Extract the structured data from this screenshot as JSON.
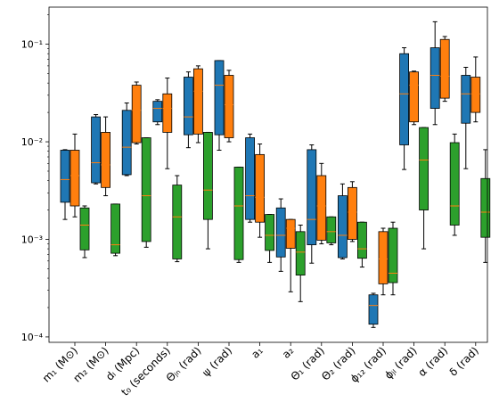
{
  "chart_data": {
    "type": "box",
    "yscale": "log",
    "ylim": [
      8.8e-05,
      0.24
    ],
    "ytick_labels": [
      "10⁻⁴",
      "10⁻³",
      "10⁻²",
      "10⁻¹"
    ],
    "ytick_values": [
      0.0001,
      0.001,
      0.01,
      0.1
    ],
    "grid": false,
    "categories": [
      "m₁ (M⊙)",
      "m₂ (M⊙)",
      "dₗ (Mpc)",
      "t₀ (seconds)",
      "Θⱼₙ (rad)",
      "ψ (rad)",
      "a₁",
      "a₂",
      "Θ₁ (rad)",
      "Θ₂ (rad)",
      "ϕ₁₂ (rad)",
      "ϕⱼₗ (rad)",
      "α (rad)",
      "δ (rad)"
    ],
    "series_colors": [
      "#1f77b4",
      "#ff7f0e",
      "#2ca02c"
    ],
    "median_color": "#ff7f0e",
    "boxes": [
      [
        {
          "whislo": 0.0016,
          "q1": 0.0024,
          "med": 0.0041,
          "q3": 0.0082,
          "whishi": 0.0083
        },
        {
          "whislo": 0.0017,
          "q1": 0.0022,
          "med": 0.0045,
          "q3": 0.0082,
          "whishi": 0.012
        },
        {
          "whislo": 0.00065,
          "q1": 0.00078,
          "med": 0.0014,
          "q3": 0.0021,
          "whishi": 0.0022
        }
      ],
      [
        {
          "whislo": 0.0037,
          "q1": 0.0038,
          "med": 0.0061,
          "q3": 0.018,
          "whishi": 0.019
        },
        {
          "whislo": 0.0028,
          "q1": 0.0034,
          "med": 0.0058,
          "q3": 0.0125,
          "whishi": 0.018
        },
        {
          "whislo": 0.00068,
          "q1": 0.00072,
          "med": 0.00088,
          "q3": 0.0023,
          "whishi": 0.0023
        }
      ],
      [
        {
          "whislo": 0.0045,
          "q1": 0.0046,
          "med": 0.0088,
          "q3": 0.021,
          "whishi": 0.025
        },
        {
          "whislo": 0.0095,
          "q1": 0.0098,
          "med": 0.021,
          "q3": 0.038,
          "whishi": 0.041
        },
        {
          "whislo": 0.00083,
          "q1": 0.00095,
          "med": 0.0028,
          "q3": 0.011,
          "whishi": 0.011
        }
      ],
      [
        {
          "whislo": 0.015,
          "q1": 0.016,
          "med": 0.022,
          "q3": 0.026,
          "whishi": 0.027
        },
        {
          "whislo": 0.0053,
          "q1": 0.0125,
          "med": 0.022,
          "q3": 0.031,
          "whishi": 0.045
        },
        {
          "whislo": 0.00059,
          "q1": 0.00063,
          "med": 0.0017,
          "q3": 0.0036,
          "whishi": 0.0045
        }
      ],
      [
        {
          "whislo": 0.0087,
          "q1": 0.0118,
          "med": 0.018,
          "q3": 0.046,
          "whishi": 0.052
        },
        {
          "whislo": 0.0098,
          "q1": 0.012,
          "med": 0.033,
          "q3": 0.056,
          "whishi": 0.06
        },
        {
          "whislo": 0.0008,
          "q1": 0.0016,
          "med": 0.0032,
          "q3": 0.0125,
          "whishi": 0.0125
        }
      ],
      [
        {
          "whislo": 0.0082,
          "q1": 0.0118,
          "med": 0.038,
          "q3": 0.068,
          "whishi": 0.068
        },
        {
          "whislo": 0.01,
          "q1": 0.011,
          "med": 0.024,
          "q3": 0.048,
          "whishi": 0.054
        },
        {
          "whislo": 0.00058,
          "q1": 0.00062,
          "med": 0.0022,
          "q3": 0.0055,
          "whishi": 0.0055
        }
      ],
      [
        {
          "whislo": 0.0015,
          "q1": 0.0016,
          "med": 0.0028,
          "q3": 0.011,
          "whishi": 0.012
        },
        {
          "whislo": 0.00105,
          "q1": 0.0015,
          "med": 0.0027,
          "q3": 0.0074,
          "whishi": 0.0095
        },
        {
          "whislo": 0.00058,
          "q1": 0.00077,
          "med": 0.0011,
          "q3": 0.0018,
          "whishi": 0.0018
        }
      ],
      [
        {
          "whislo": 0.00047,
          "q1": 0.00066,
          "med": 0.0011,
          "q3": 0.0021,
          "whishi": 0.0026
        },
        {
          "whislo": 0.00029,
          "q1": 0.00081,
          "med": 0.0013,
          "q3": 0.0016,
          "whishi": 0.0016
        },
        {
          "whislo": 0.00023,
          "q1": 0.00043,
          "med": 0.00074,
          "q3": 0.0012,
          "whishi": 0.0014
        }
      ],
      [
        {
          "whislo": 0.00057,
          "q1": 0.00088,
          "med": 0.0016,
          "q3": 0.0083,
          "whishi": 0.0093
        },
        {
          "whislo": 0.0009,
          "q1": 0.00098,
          "med": 0.0022,
          "q3": 0.0045,
          "whishi": 0.006
        },
        {
          "whislo": 0.00088,
          "q1": 0.00092,
          "med": 0.0012,
          "q3": 0.0017,
          "whishi": 0.0017
        }
      ],
      [
        {
          "whislo": 0.00063,
          "q1": 0.00065,
          "med": 0.0011,
          "q3": 0.0028,
          "whishi": 0.0037
        },
        {
          "whislo": 0.00095,
          "q1": 0.001,
          "med": 0.0019,
          "q3": 0.0034,
          "whishi": 0.0039
        },
        {
          "whislo": 0.00052,
          "q1": 0.00064,
          "med": 0.0008,
          "q3": 0.0015,
          "whishi": 0.0015
        }
      ],
      [
        {
          "whislo": 0.000125,
          "q1": 0.000135,
          "med": 0.00021,
          "q3": 0.00027,
          "whishi": 0.00028
        },
        {
          "whislo": 0.00027,
          "q1": 0.00035,
          "med": 0.00063,
          "q3": 0.0012,
          "whishi": 0.0013
        },
        {
          "whislo": 0.00027,
          "q1": 0.00036,
          "med": 0.00045,
          "q3": 0.0013,
          "whishi": 0.0015
        }
      ],
      [
        {
          "whislo": 0.0052,
          "q1": 0.0093,
          "med": 0.031,
          "q3": 0.08,
          "whishi": 0.092
        },
        {
          "whislo": 0.015,
          "q1": 0.016,
          "med": 0.038,
          "q3": 0.052,
          "whishi": 0.053
        },
        {
          "whislo": 0.0008,
          "q1": 0.002,
          "med": 0.0065,
          "q3": 0.014,
          "whishi": 0.014
        }
      ],
      [
        {
          "whislo": 0.015,
          "q1": 0.022,
          "med": 0.048,
          "q3": 0.092,
          "whishi": 0.17
        },
        {
          "whislo": 0.026,
          "q1": 0.028,
          "med": 0.047,
          "q3": 0.112,
          "whishi": 0.12
        },
        {
          "whislo": 0.0011,
          "q1": 0.0014,
          "med": 0.0022,
          "q3": 0.0098,
          "whishi": 0.012
        }
      ],
      [
        {
          "whislo": 0.0053,
          "q1": 0.0155,
          "med": 0.031,
          "q3": 0.048,
          "whishi": 0.058
        },
        {
          "whislo": 0.016,
          "q1": 0.02,
          "med": 0.031,
          "q3": 0.046,
          "whishi": 0.074
        },
        {
          "whislo": 0.00058,
          "q1": 0.00105,
          "med": 0.0019,
          "q3": 0.0042,
          "whishi": 0.0083
        }
      ]
    ]
  }
}
